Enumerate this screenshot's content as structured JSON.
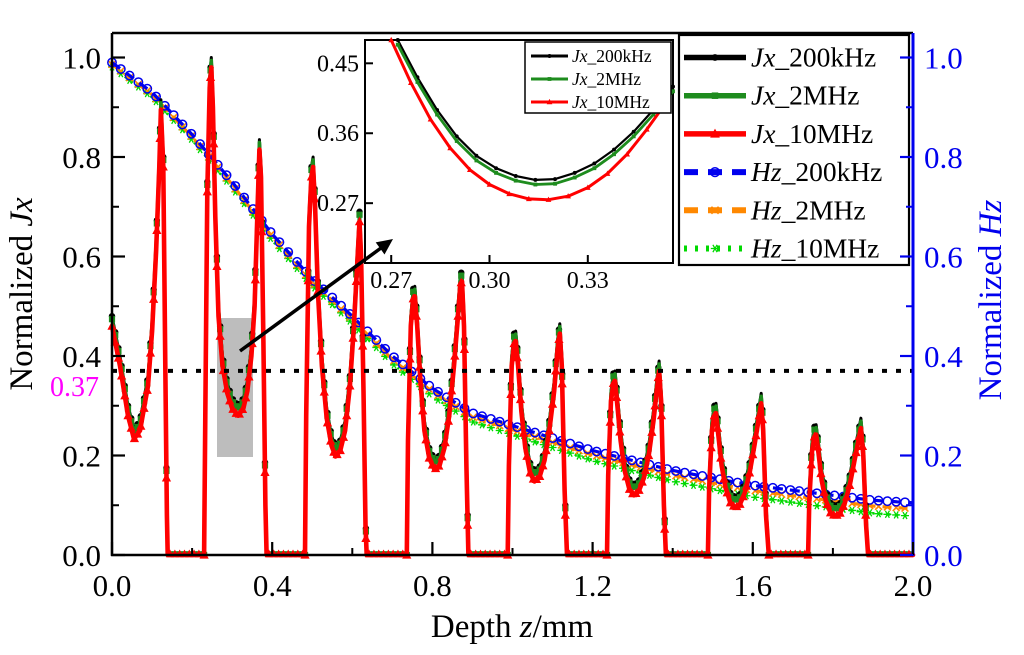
{
  "figure": {
    "bg": "#ffffff"
  },
  "colors": {
    "jx_200khz": "#000000",
    "jx_2mhz": "#1e8c1e",
    "jx_10mhz": "#ff0000",
    "hz_200khz": "#0000ee",
    "hz_2mhz": "#ff8800",
    "hz_10mhz": "#00d900",
    "right_axis": "#0000ee",
    "ref_label": "#ff00ff",
    "highlight_rect": "#bdbdbd",
    "axis_black": "#000000"
  },
  "axes": {
    "x": {
      "title_prefix": "Depth ",
      "title_italic": "z",
      "title_suffix": "/mm",
      "min": 0,
      "max": 2,
      "tick_values": [
        0,
        0.4,
        0.8,
        1.2,
        1.6,
        2
      ],
      "tick_labels": [
        "0.0",
        "0.4",
        "0.8",
        "1.2",
        "1.6",
        "2.0"
      ],
      "minor_values": [
        0.2,
        0.6,
        1.0,
        1.4,
        1.8
      ]
    },
    "y_left": {
      "title_prefix": "Normalized ",
      "title_italic": "Jx",
      "min": 0,
      "max": 1.05,
      "tick_values": [
        0,
        0.2,
        0.4,
        0.6,
        0.8,
        1.0
      ],
      "tick_labels": [
        "0.0",
        "0.2",
        "0.4",
        "0.6",
        "0.8",
        "1.0"
      ],
      "minor_values": [
        0.1,
        0.3,
        0.5,
        0.7,
        0.9
      ]
    },
    "y_right": {
      "title_prefix": "Normalized ",
      "title_italic": "Hz",
      "min": 0,
      "max": 1.05,
      "tick_values": [
        0,
        0.2,
        0.4,
        0.6,
        0.8,
        1.0
      ],
      "tick_labels": [
        "0.0",
        "0.2",
        "0.4",
        "0.6",
        "0.8",
        "1.0"
      ],
      "minor_values": [
        0.1,
        0.3,
        0.5,
        0.7,
        0.9
      ]
    }
  },
  "reference_line": {
    "y": 0.37,
    "label": "0.37"
  },
  "legend": {
    "entries": [
      {
        "prefix": "Jx",
        "rest": "_200kHz",
        "series": "jx_200khz",
        "line": "solid",
        "marker": "circle"
      },
      {
        "prefix": "Jx",
        "rest": "_2MHz",
        "series": "jx_2mhz",
        "line": "solid",
        "marker": "square"
      },
      {
        "prefix": "Jx",
        "rest": "_10MHz",
        "series": "jx_10mhz",
        "line": "solid",
        "marker": "triangle"
      },
      {
        "prefix": "Hz",
        "rest": "_200kHz",
        "series": "hz_200khz",
        "line": "dashed",
        "marker": "ocircle"
      },
      {
        "prefix": "Hz",
        "rest": "_2MHz",
        "series": "hz_2mhz",
        "line": "dashed",
        "marker": "xcross"
      },
      {
        "prefix": "Hz",
        "rest": "_10MHz",
        "series": "hz_10mhz",
        "line": "dotted",
        "marker": "star"
      }
    ]
  },
  "inset": {
    "xlim": [
      0.262,
      0.356
    ],
    "ylim": [
      0.193,
      0.48
    ],
    "xtick_values": [
      0.27,
      0.3,
      0.33
    ],
    "xtick_labels": [
      "0.27",
      "0.30",
      "0.33"
    ],
    "ytick_values": [
      0.27,
      0.36,
      0.45
    ],
    "ytick_labels": [
      "0.27",
      "0.36",
      "0.45"
    ],
    "legend_entries": [
      {
        "prefix": "Jx",
        "rest": "_200kHz",
        "series": "jx_200khz",
        "marker": "circle"
      },
      {
        "prefix": "Jx",
        "rest": "_2MHz",
        "series": "jx_2mhz",
        "marker": "square"
      },
      {
        "prefix": "Jx",
        "rest": "_10MHz",
        "series": "jx_10mhz",
        "marker": "triangle"
      }
    ],
    "curve_base": [
      [
        0.272,
        0.48
      ],
      [
        0.278,
        0.432
      ],
      [
        0.284,
        0.39
      ],
      [
        0.29,
        0.356
      ],
      [
        0.296,
        0.331
      ],
      [
        0.302,
        0.315
      ],
      [
        0.308,
        0.305
      ],
      [
        0.314,
        0.3
      ],
      [
        0.32,
        0.301
      ],
      [
        0.326,
        0.309
      ],
      [
        0.332,
        0.321
      ],
      [
        0.338,
        0.339
      ],
      [
        0.344,
        0.362
      ],
      [
        0.35,
        0.39
      ],
      [
        0.356,
        0.42
      ]
    ],
    "curve_green_offset": -0.006,
    "curve_red": [
      [
        0.27,
        0.48
      ],
      [
        0.276,
        0.425
      ],
      [
        0.282,
        0.378
      ],
      [
        0.288,
        0.341
      ],
      [
        0.294,
        0.313
      ],
      [
        0.3,
        0.294
      ],
      [
        0.306,
        0.282
      ],
      [
        0.312,
        0.2755
      ],
      [
        0.318,
        0.2745
      ],
      [
        0.324,
        0.279
      ],
      [
        0.33,
        0.29
      ],
      [
        0.336,
        0.308
      ],
      [
        0.342,
        0.333
      ],
      [
        0.348,
        0.365
      ],
      [
        0.354,
        0.4
      ]
    ]
  },
  "chart_data": {
    "type": "line",
    "title": "",
    "xlabel": "Depth z/mm",
    "ylabel_left": "Normalized Jx",
    "ylabel_right": "Normalized Hz",
    "xlim": [
      0,
      2.0
    ],
    "ylim_left": [
      0,
      1.05
    ],
    "ylim_right": [
      0,
      1.05
    ],
    "grid": false,
    "legend_position": "upper right",
    "reference_line_y": 0.37,
    "jx_segments_200khz": [
      [
        [
          0,
          0.48
        ],
        [
          0.02,
          0.4
        ],
        [
          0.04,
          0.3
        ],
        [
          0.055,
          0.253
        ],
        [
          0.07,
          0.27
        ],
        [
          0.09,
          0.36
        ],
        [
          0.1,
          0.47
        ],
        [
          0.11,
          0.63
        ],
        [
          0.118,
          0.8
        ],
        [
          0.122,
          0.915
        ],
        [
          0.128,
          0.8
        ],
        [
          0.133,
          0.4
        ],
        [
          0.137,
          0.1
        ],
        [
          0.139,
          0
        ]
      ],
      [
        [
          0.23,
          0
        ],
        [
          0.233,
          0.3
        ],
        [
          0.238,
          0.75
        ],
        [
          0.244,
          0.96
        ],
        [
          0.248,
          1.0
        ],
        [
          0.252,
          0.92
        ],
        [
          0.258,
          0.7
        ],
        [
          0.266,
          0.5
        ],
        [
          0.276,
          0.4
        ],
        [
          0.288,
          0.345
        ],
        [
          0.3,
          0.315
        ],
        [
          0.315,
          0.3
        ],
        [
          0.328,
          0.315
        ],
        [
          0.338,
          0.35
        ],
        [
          0.348,
          0.42
        ],
        [
          0.356,
          0.52
        ],
        [
          0.362,
          0.68
        ],
        [
          0.368,
          0.835
        ],
        [
          0.372,
          0.78
        ],
        [
          0.378,
          0.45
        ],
        [
          0.383,
          0.12
        ],
        [
          0.386,
          0
        ]
      ],
      [
        [
          0.482,
          0
        ],
        [
          0.485,
          0.3
        ],
        [
          0.492,
          0.68
        ],
        [
          0.498,
          0.78
        ],
        [
          0.502,
          0.8
        ],
        [
          0.507,
          0.72
        ],
        [
          0.514,
          0.55
        ],
        [
          0.524,
          0.4
        ],
        [
          0.536,
          0.295
        ],
        [
          0.548,
          0.24
        ],
        [
          0.558,
          0.218
        ],
        [
          0.57,
          0.23
        ],
        [
          0.582,
          0.27
        ],
        [
          0.594,
          0.36
        ],
        [
          0.604,
          0.48
        ],
        [
          0.612,
          0.6
        ],
        [
          0.618,
          0.69
        ],
        [
          0.622,
          0.62
        ],
        [
          0.628,
          0.35
        ],
        [
          0.633,
          0.08
        ],
        [
          0.636,
          0
        ]
      ],
      [
        [
          0.736,
          0
        ],
        [
          0.739,
          0.25
        ],
        [
          0.746,
          0.48
        ],
        [
          0.752,
          0.535
        ],
        [
          0.756,
          0.54
        ],
        [
          0.762,
          0.48
        ],
        [
          0.77,
          0.37
        ],
        [
          0.78,
          0.27
        ],
        [
          0.792,
          0.215
        ],
        [
          0.805,
          0.192
        ],
        [
          0.818,
          0.2
        ],
        [
          0.83,
          0.235
        ],
        [
          0.842,
          0.3
        ],
        [
          0.854,
          0.4
        ],
        [
          0.864,
          0.5
        ],
        [
          0.87,
          0.565
        ],
        [
          0.874,
          0.57
        ],
        [
          0.879,
          0.48
        ],
        [
          0.885,
          0.2
        ],
        [
          0.89,
          0
        ]
      ],
      [
        [
          0.988,
          0
        ],
        [
          0.991,
          0.2
        ],
        [
          0.998,
          0.4
        ],
        [
          1.004,
          0.445
        ],
        [
          1.008,
          0.45
        ],
        [
          1.014,
          0.4
        ],
        [
          1.022,
          0.31
        ],
        [
          1.032,
          0.235
        ],
        [
          1.044,
          0.185
        ],
        [
          1.055,
          0.168
        ],
        [
          1.068,
          0.178
        ],
        [
          1.08,
          0.21
        ],
        [
          1.092,
          0.27
        ],
        [
          1.104,
          0.35
        ],
        [
          1.112,
          0.43
        ],
        [
          1.118,
          0.465
        ],
        [
          1.123,
          0.4
        ],
        [
          1.13,
          0.15
        ],
        [
          1.136,
          0
        ]
      ],
      [
        [
          1.236,
          0
        ],
        [
          1.239,
          0.18
        ],
        [
          1.246,
          0.33
        ],
        [
          1.252,
          0.365
        ],
        [
          1.256,
          0.37
        ],
        [
          1.262,
          0.32
        ],
        [
          1.27,
          0.25
        ],
        [
          1.28,
          0.19
        ],
        [
          1.292,
          0.152
        ],
        [
          1.303,
          0.14
        ],
        [
          1.316,
          0.15
        ],
        [
          1.328,
          0.175
        ],
        [
          1.34,
          0.22
        ],
        [
          1.352,
          0.29
        ],
        [
          1.36,
          0.35
        ],
        [
          1.366,
          0.39
        ],
        [
          1.371,
          0.33
        ],
        [
          1.378,
          0.12
        ],
        [
          1.383,
          0
        ]
      ],
      [
        [
          1.488,
          0
        ],
        [
          1.491,
          0.15
        ],
        [
          1.498,
          0.27
        ],
        [
          1.504,
          0.3
        ],
        [
          1.508,
          0.305
        ],
        [
          1.514,
          0.26
        ],
        [
          1.522,
          0.2
        ],
        [
          1.532,
          0.155
        ],
        [
          1.544,
          0.125
        ],
        [
          1.556,
          0.115
        ],
        [
          1.568,
          0.122
        ],
        [
          1.58,
          0.145
        ],
        [
          1.592,
          0.185
        ],
        [
          1.604,
          0.24
        ],
        [
          1.614,
          0.29
        ],
        [
          1.621,
          0.325
        ],
        [
          1.626,
          0.27
        ],
        [
          1.633,
          0.1
        ],
        [
          1.64,
          0
        ]
      ],
      [
        [
          1.738,
          0
        ],
        [
          1.741,
          0.13
        ],
        [
          1.748,
          0.23
        ],
        [
          1.754,
          0.258
        ],
        [
          1.758,
          0.262
        ],
        [
          1.764,
          0.225
        ],
        [
          1.772,
          0.17
        ],
        [
          1.782,
          0.13
        ],
        [
          1.794,
          0.105
        ],
        [
          1.806,
          0.098
        ],
        [
          1.818,
          0.104
        ],
        [
          1.83,
          0.125
        ],
        [
          1.842,
          0.16
        ],
        [
          1.854,
          0.21
        ],
        [
          1.864,
          0.25
        ],
        [
          1.87,
          0.275
        ],
        [
          1.876,
          0.22
        ],
        [
          1.883,
          0.08
        ],
        [
          1.888,
          0
        ]
      ]
    ],
    "jx_offsets": {
      "jx_2mhz": -0.006,
      "jx_10mhz": -0.02
    },
    "hz_base_points": [
      [
        0,
        0.99
      ],
      [
        0.1,
        0.93
      ],
      [
        0.2,
        0.845
      ],
      [
        0.3,
        0.75
      ],
      [
        0.4,
        0.645
      ],
      [
        0.5,
        0.555
      ],
      [
        0.6,
        0.48
      ],
      [
        0.7,
        0.4
      ],
      [
        0.8,
        0.335
      ],
      [
        0.9,
        0.285
      ],
      [
        1.0,
        0.26
      ],
      [
        1.1,
        0.235
      ],
      [
        1.2,
        0.21
      ],
      [
        1.3,
        0.19
      ],
      [
        1.4,
        0.17
      ],
      [
        1.5,
        0.155
      ],
      [
        1.6,
        0.14
      ],
      [
        1.7,
        0.13
      ],
      [
        1.8,
        0.12
      ],
      [
        1.9,
        0.11
      ],
      [
        2.0,
        0.105
      ]
    ],
    "hz_offsets": {
      "hz_200khz": [
        0,
        0
      ],
      "hz_2mhz": [
        0.004,
        0.004
      ],
      "hz_10mhz": [
        0.009,
        0.009
      ]
    }
  }
}
